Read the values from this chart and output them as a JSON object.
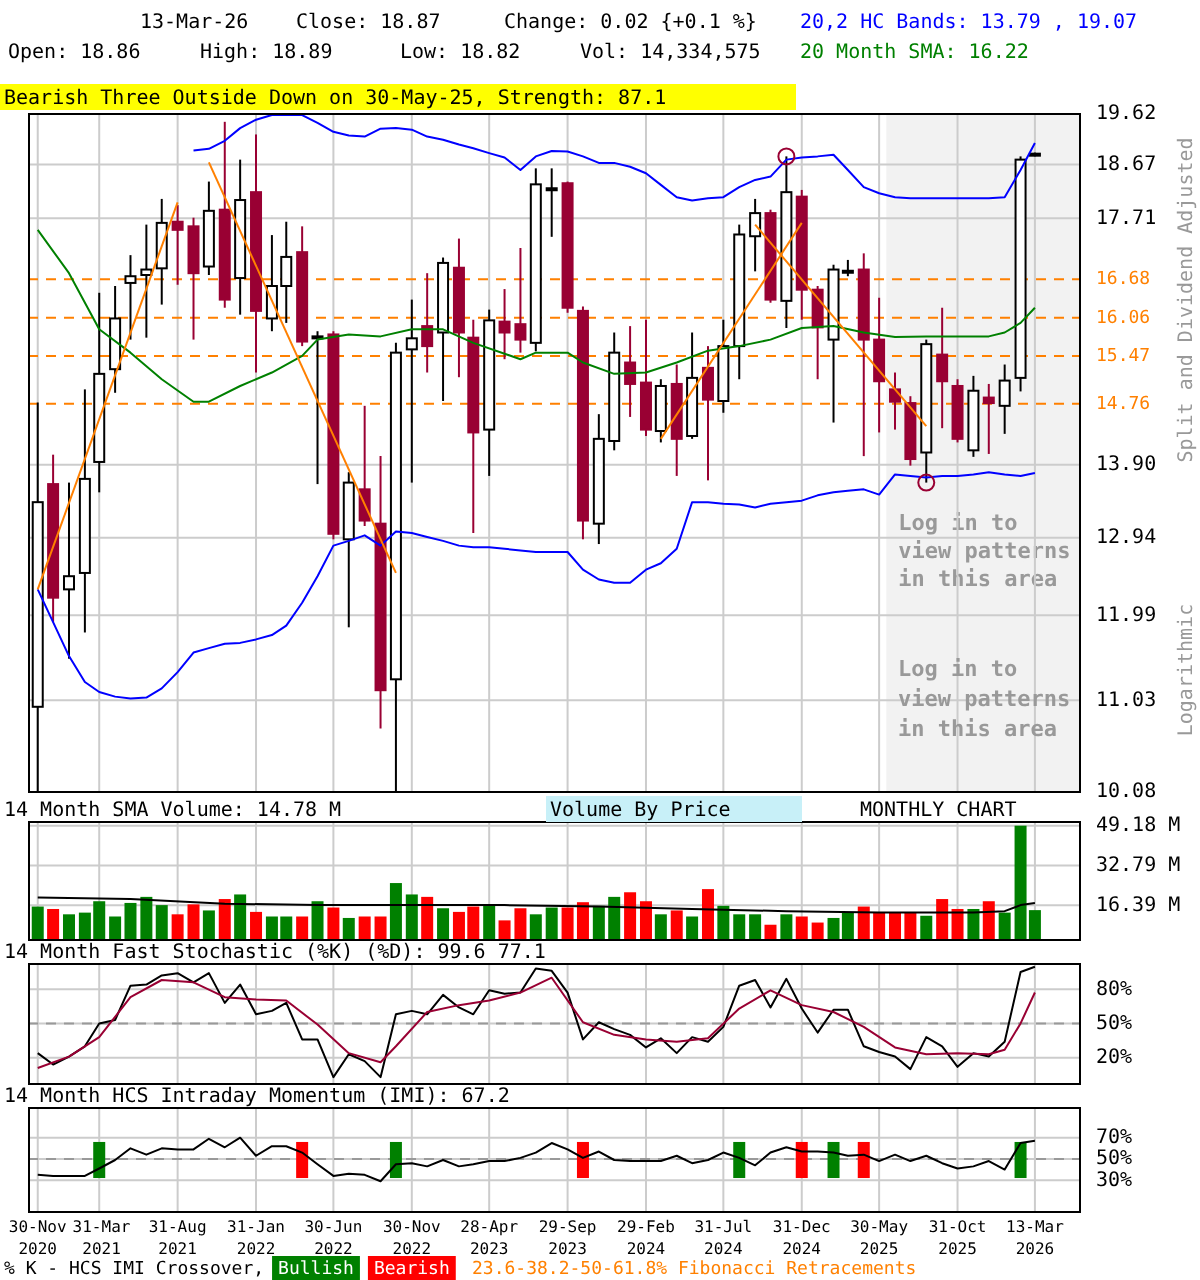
{
  "chart_data": [
    {
      "type": "candlestick",
      "colors": [
        "#ffffff",
        "#990033",
        "#ffffff",
        "#ffffff",
        "#ffffff",
        "#ffffff",
        "#ffffff",
        "#ffffff",
        "#ffffff",
        "#990033",
        "#990033",
        "#ffffff",
        "#990033",
        "#ffffff",
        "#990033",
        "#ffffff",
        "#ffffff",
        "#990033",
        "#ffffff",
        "#990033",
        "#ffffff",
        "#990033",
        "#990033",
        "#ffffff",
        "#ffffff",
        "#990033",
        "#ffffff",
        "#990033",
        "#990033",
        "#ffffff",
        "#990033",
        "#990033",
        "#ffffff",
        "#ffffff",
        "#990033",
        "#990033",
        "#ffffff",
        "#ffffff",
        "#990033",
        "#990033",
        "#ffffff",
        "#990033",
        "#ffffff",
        "#990033",
        "#ffffff",
        "#ffffff",
        "#ffffff",
        "#990033",
        "#ffffff",
        "#990033",
        "#990033",
        "#ffffff",
        "#ffffff",
        "#990033",
        "#990033",
        "#990033",
        "#990033",
        "#ffffff",
        "#990033",
        "#990033",
        "#ffffff",
        "#990033",
        "#ffffff",
        "#ffffff",
        "#ffffff"
      ],
      "x": [
        "2020-11",
        "2020-12",
        "2021-01",
        "2021-02",
        "2021-03",
        "2021-04",
        "2021-05",
        "2021-06",
        "2021-07",
        "2021-08",
        "2021-09",
        "2021-10",
        "2021-11",
        "2021-12",
        "2022-01",
        "2022-02",
        "2022-03",
        "2022-04",
        "2022-05",
        "2022-06",
        "2022-07",
        "2022-08",
        "2022-09",
        "2022-10",
        "2022-11",
        "2022-12",
        "2023-01",
        "2023-02",
        "2023-03",
        "2023-04",
        "2023-05",
        "2023-06",
        "2023-07",
        "2023-08",
        "2023-09",
        "2023-10",
        "2023-11",
        "2023-12",
        "2024-01",
        "2024-02",
        "2024-03",
        "2024-04",
        "2024-05",
        "2024-06",
        "2024-07",
        "2024-08",
        "2024-09",
        "2024-10",
        "2024-11",
        "2024-12",
        "2025-01",
        "2025-02",
        "2025-03",
        "2025-04",
        "2025-05",
        "2025-06",
        "2025-07",
        "2025-08",
        "2025-09",
        "2025-10",
        "2025-11",
        "2025-12",
        "2026-01",
        "2026-02",
        "2026-03"
      ],
      "ohlc": [
        [
          10.96,
          14.78,
          10.08,
          13.4
        ],
        [
          13.64,
          14.04,
          11.91,
          12.2
        ],
        [
          12.3,
          13.66,
          11.49,
          12.46
        ],
        [
          12.5,
          14.97,
          11.79,
          13.71
        ],
        [
          13.94,
          16.46,
          13.53,
          15.2
        ],
        [
          15.27,
          16.57,
          14.92,
          16.05
        ],
        [
          16.62,
          17.08,
          15.72,
          16.73
        ],
        [
          16.75,
          17.6,
          15.75,
          16.84
        ],
        [
          16.86,
          18.05,
          16.27,
          17.63
        ],
        [
          17.65,
          17.94,
          16.59,
          17.51
        ],
        [
          17.57,
          17.72,
          15.72,
          16.78
        ],
        [
          16.89,
          18.36,
          16.75,
          17.84
        ],
        [
          17.86,
          19.47,
          16.22,
          16.35
        ],
        [
          16.7,
          18.76,
          16.11,
          18.03
        ],
        [
          18.17,
          19.23,
          15.22,
          16.17
        ],
        [
          16.05,
          17.42,
          15.85,
          16.57
        ],
        [
          16.57,
          17.65,
          15.98,
          17.05
        ],
        [
          17.13,
          17.57,
          15.62,
          15.69
        ],
        [
          15.74,
          15.85,
          13.64,
          15.77
        ],
        [
          15.8,
          15.85,
          12.92,
          12.99
        ],
        [
          12.92,
          13.8,
          11.85,
          13.66
        ],
        [
          13.57,
          14.73,
          13.09,
          13.16
        ],
        [
          13.12,
          14.02,
          10.73,
          11.14
        ],
        [
          11.26,
          15.67,
          10.08,
          15.52
        ],
        [
          15.57,
          16.35,
          13.66,
          15.74
        ],
        [
          15.93,
          16.78,
          15.22,
          15.62
        ],
        [
          15.83,
          17.04,
          14.8,
          16.95
        ],
        [
          16.87,
          17.36,
          15.15,
          15.83
        ],
        [
          15.75,
          16.03,
          13.0,
          14.35
        ],
        [
          14.39,
          16.19,
          13.75,
          16.02
        ],
        [
          16.0,
          16.52,
          15.42,
          15.83
        ],
        [
          15.96,
          17.2,
          15.52,
          15.72
        ],
        [
          15.67,
          18.6,
          15.54,
          18.31
        ],
        [
          18.22,
          18.6,
          17.39,
          18.24
        ],
        [
          18.33,
          18.36,
          16.14,
          16.22
        ],
        [
          16.17,
          16.24,
          12.92,
          13.16
        ],
        [
          13.12,
          14.61,
          12.86,
          14.26
        ],
        [
          14.23,
          15.83,
          14.1,
          15.52
        ],
        [
          15.37,
          15.93,
          14.57,
          15.05
        ],
        [
          15.07,
          16.03,
          14.3,
          14.39
        ],
        [
          14.37,
          15.12,
          14.21,
          15.02
        ],
        [
          15.05,
          15.34,
          13.75,
          14.26
        ],
        [
          14.3,
          15.83,
          14.26,
          15.14
        ],
        [
          15.29,
          15.62,
          13.69,
          14.82
        ],
        [
          14.8,
          16.03,
          14.63,
          15.62
        ],
        [
          15.62,
          17.6,
          15.12,
          17.43
        ],
        [
          17.4,
          18.05,
          16.81,
          17.8
        ],
        [
          17.8,
          17.86,
          16.3,
          16.35
        ],
        [
          16.33,
          18.82,
          15.9,
          18.17
        ],
        [
          18.09,
          18.21,
          16.03,
          16.51
        ],
        [
          16.51,
          16.57,
          15.12,
          15.91
        ],
        [
          15.72,
          16.92,
          14.49,
          16.84
        ],
        [
          16.79,
          17.0,
          16.73,
          16.82
        ],
        [
          16.84,
          17.11,
          14.02,
          15.72
        ],
        [
          15.72,
          16.38,
          14.35,
          15.09
        ],
        [
          14.97,
          15.22,
          14.39,
          14.79
        ],
        [
          14.77,
          14.87,
          13.89,
          13.98
        ],
        [
          14.07,
          15.72,
          13.66,
          15.65
        ],
        [
          15.49,
          16.22,
          14.41,
          15.09
        ],
        [
          15.02,
          15.12,
          14.21,
          14.26
        ],
        [
          14.1,
          15.17,
          14.01,
          14.95
        ],
        [
          14.85,
          15.05,
          14.05,
          14.77
        ],
        [
          14.73,
          15.34,
          14.33,
          15.1
        ],
        [
          15.14,
          18.82,
          14.94,
          18.76
        ],
        [
          18.86,
          18.89,
          18.82,
          18.87
        ]
      ],
      "series": [
        {
          "type": "line",
          "name": "20,2 HC Bands: 13.79 , 19.07",
          "color": "#0000ff",
          "values": [
            null,
            null,
            null,
            null,
            null,
            null,
            null,
            null,
            null,
            null,
            18.93,
            18.96,
            19.11,
            19.35,
            19.51,
            19.6,
            19.6,
            19.6,
            19.45,
            19.28,
            19.21,
            19.19,
            19.34,
            19.35,
            19.32,
            19.19,
            19.13,
            19.04,
            18.97,
            18.88,
            18.8,
            18.57,
            18.82,
            18.92,
            18.91,
            18.82,
            18.7,
            18.7,
            18.63,
            18.51,
            18.3,
            18.08,
            18.02,
            18.06,
            18.08,
            18.26,
            18.39,
            18.45,
            18.76,
            18.8,
            18.82,
            18.85,
            18.57,
            18.26,
            18.15,
            18.08,
            18.06,
            18.06,
            18.06,
            18.06,
            18.06,
            18.06,
            18.08,
            18.57,
            19.07
          ]
        },
        {
          "type": "line",
          "color": "#0000ff",
          "values": [
            12.3,
            11.91,
            11.52,
            11.23,
            11.12,
            11.07,
            11.05,
            11.06,
            11.16,
            11.34,
            11.56,
            11.61,
            11.66,
            11.67,
            11.71,
            11.76,
            11.87,
            12.14,
            12.46,
            12.84,
            12.9,
            12.97,
            12.84,
            13.02,
            13.0,
            12.95,
            12.9,
            12.84,
            12.82,
            12.82,
            12.8,
            12.78,
            12.76,
            12.76,
            12.76,
            12.54,
            12.42,
            12.38,
            12.38,
            12.54,
            12.62,
            12.8,
            13.4,
            13.4,
            13.38,
            13.37,
            13.33,
            13.38,
            13.4,
            13.42,
            13.49,
            13.53,
            13.55,
            13.57,
            13.5,
            13.77,
            13.75,
            13.73,
            13.75,
            13.75,
            13.77,
            13.8,
            13.77,
            13.75,
            13.79
          ]
        },
        {
          "type": "line",
          "name": "20 Month SMA: 16.22",
          "color": "#008000",
          "x": [
            "2020-11",
            "2021-01",
            "2021-03",
            "2021-05",
            "2021-07",
            "2021-09",
            "2021-10",
            "2021-12",
            "2022-02",
            "2022-04",
            "2022-05",
            "2022-07",
            "2022-09",
            "2022-11",
            "2023-01",
            "2023-03",
            "2023-06",
            "2023-07",
            "2023-09",
            "2023-10",
            "2023-12",
            "2024-02",
            "2024-04",
            "2024-06",
            "2024-08",
            "2024-10",
            "2024-12",
            "2025-02",
            "2025-04",
            "2025-06",
            "2025-08",
            "2025-10",
            "2025-12",
            "2026-01",
            "2026-02",
            "2026-03"
          ],
          "values": [
            17.51,
            16.78,
            15.88,
            15.52,
            15.12,
            14.79,
            14.79,
            15.02,
            15.22,
            15.47,
            15.72,
            15.8,
            15.77,
            15.88,
            15.88,
            15.67,
            15.42,
            15.52,
            15.52,
            15.37,
            15.2,
            15.22,
            15.37,
            15.55,
            15.62,
            15.72,
            15.9,
            15.93,
            15.83,
            15.76,
            15.77,
            15.77,
            15.77,
            15.83,
            15.98,
            16.22
          ]
        },
        {
          "type": "line",
          "color": "#ff8000",
          "x": [
            "2020-11",
            "2021-08"
          ],
          "values": [
            12.3,
            17.99
          ]
        },
        {
          "type": "line",
          "color": "#ff8000",
          "x": [
            "2021-10",
            "2022-10"
          ],
          "values": [
            18.71,
            12.5
          ]
        },
        {
          "type": "line",
          "color": "#ff8000",
          "x": [
            "2024-03",
            "2024-12"
          ],
          "values": [
            14.26,
            17.63
          ]
        },
        {
          "type": "line",
          "color": "#ff8000",
          "x": [
            "2024-09",
            "2025-08"
          ],
          "values": [
            17.6,
            14.44
          ]
        },
        {
          "type": "scatter",
          "marker": "circle",
          "color": "#990033",
          "x": [
            "2024-11",
            "2025-08"
          ],
          "values": [
            18.82,
            13.66
          ]
        }
      ],
      "xlim": [
        "2020-10-13",
        "2026-05-28"
      ],
      "xticks": [
        "2020-11",
        "2021-03",
        "2021-08",
        "2022-01",
        "2022-06",
        "2022-11",
        "2023-04",
        "2023-09",
        "2024-02",
        "2024-07",
        "2024-12",
        "2025-05",
        "2025-10",
        "2026-03"
      ],
      "ylim": [
        10.08,
        19.62
      ],
      "log": true,
      "yticks": [
        19.62,
        18.67,
        17.71,
        {
          "value": 13.9,
          "label": "13.90"
        },
        12.94,
        11.99,
        11.03,
        10.08
      ],
      "grid": true,
      "tick_labels": "y",
      "legend": "top right",
      "ylabel": "Split and Dividend Adjusted",
      "ref_lines": [
        {
          "axis": "y",
          "value": 16.68,
          "label": "16.68",
          "color": "#ff8000",
          "line_style": "dashed"
        },
        {
          "axis": "y",
          "value": 16.06,
          "label": "16.06",
          "color": "#ff8000",
          "line_style": "dashed"
        },
        {
          "axis": "y",
          "value": 15.47,
          "label": "15.47",
          "color": "#ff8000",
          "line_style": "dashed"
        },
        {
          "axis": "y",
          "value": 14.76,
          "label": "14.76",
          "color": "#ff8000",
          "line_style": "dashed"
        }
      ],
      "bands": [
        {
          "axis": "x",
          "from": "2025-05-15",
          "to": "2026-05-28",
          "label": "Log in to view patterns in this area",
          "color": "#f2f2f2"
        }
      ],
      "annotations": [
        "13-Mar-26",
        "Close: 18.87",
        "Change: 0.02 {+0.1 %}",
        "Open: 18.86",
        "High: 18.89",
        "Low: 18.82",
        "Vol: 14,334,575",
        "Bearish Three Outside Down on 30-May-25, Strength: 87.1",
        "Log in to view patterns in this area",
        "Logarithmic"
      ]
    },
    {
      "type": "bar",
      "title": "14 Month SMA Volume: 14.78 M",
      "x": [
        "2020-11",
        "2020-12",
        "2021-01",
        "2021-02",
        "2021-03",
        "2021-04",
        "2021-05",
        "2021-06",
        "2021-07",
        "2021-08",
        "2021-09",
        "2021-10",
        "2021-11",
        "2021-12",
        "2022-01",
        "2022-02",
        "2022-03",
        "2022-04",
        "2022-05",
        "2022-06",
        "2022-07",
        "2022-08",
        "2022-09",
        "2022-10",
        "2022-11",
        "2022-12",
        "2023-01",
        "2023-02",
        "2023-03",
        "2023-04",
        "2023-05",
        "2023-06",
        "2023-07",
        "2023-08",
        "2023-09",
        "2023-10",
        "2023-11",
        "2023-12",
        "2024-01",
        "2024-02",
        "2024-03",
        "2024-04",
        "2024-05",
        "2024-06",
        "2024-07",
        "2024-08",
        "2024-09",
        "2024-10",
        "2024-11",
        "2024-12",
        "2025-01",
        "2025-02",
        "2025-03",
        "2025-04",
        "2025-05",
        "2025-06",
        "2025-07",
        "2025-08",
        "2025-09",
        "2025-10",
        "2025-11",
        "2025-12",
        "2026-01",
        "2026-02",
        "2026-03"
      ],
      "series": [
        {
          "type": "bar",
          "values": [
            15.8,
            14.8,
            12.6,
            13.3,
            18.0,
            11.7,
            17.3,
            19.8,
            16.4,
            12.6,
            16.7,
            14.2,
            18.9,
            20.8,
            13.6,
            11.7,
            11.7,
            11.7,
            18.0,
            15.4,
            11.1,
            11.7,
            11.7,
            25.5,
            20.8,
            19.8,
            15.1,
            13.6,
            15.8,
            16.4,
            10.1,
            15.1,
            12.6,
            15.4,
            15.4,
            17.6,
            16.1,
            19.8,
            21.7,
            18.0,
            12.6,
            14.2,
            11.7,
            23.0,
            16.1,
            12.6,
            12.6,
            8.3,
            12.6,
            11.7,
            9.2,
            11.1,
            13.3,
            15.8,
            13.3,
            13.3,
            13.3,
            12.0,
            18.9,
            14.8,
            14.8,
            18.0,
            13.3,
            49.18,
            14.33
          ],
          "colors": [
            "#008000",
            "#ff0000",
            "#008000",
            "#008000",
            "#008000",
            "#008000",
            "#008000",
            "#008000",
            "#008000",
            "#ff0000",
            "#ff0000",
            "#008000",
            "#ff0000",
            "#008000",
            "#ff0000",
            "#008000",
            "#008000",
            "#ff0000",
            "#008000",
            "#ff0000",
            "#008000",
            "#ff0000",
            "#ff0000",
            "#008000",
            "#008000",
            "#ff0000",
            "#008000",
            "#ff0000",
            "#ff0000",
            "#008000",
            "#ff0000",
            "#ff0000",
            "#008000",
            "#008000",
            "#ff0000",
            "#ff0000",
            "#008000",
            "#008000",
            "#ff0000",
            "#ff0000",
            "#008000",
            "#ff0000",
            "#008000",
            "#ff0000",
            "#008000",
            "#008000",
            "#008000",
            "#ff0000",
            "#008000",
            "#ff0000",
            "#ff0000",
            "#008000",
            "#008000",
            "#ff0000",
            "#ff0000",
            "#ff0000",
            "#ff0000",
            "#008000",
            "#ff0000",
            "#ff0000",
            "#008000",
            "#ff0000",
            "#008000",
            "#008000",
            "#008000"
          ]
        },
        {
          "type": "line",
          "color": "#000000",
          "x": [
            "2020-11",
            "2021-05",
            "2021-11",
            "2022-05",
            "2022-11",
            "2023-05",
            "2023-11",
            "2024-05",
            "2024-11",
            "2025-05",
            "2025-11",
            "2026-01",
            "2026-02",
            "2026-03"
          ],
          "values": [
            19.5,
            18.9,
            17.0,
            16.4,
            16.4,
            16.4,
            15.8,
            14.8,
            13.9,
            13.3,
            13.3,
            13.9,
            16.4,
            17.3
          ]
        }
      ],
      "xlim": [
        "2020-10-13",
        "2026-05-28"
      ],
      "xticks": [
        "2020-11",
        "2021-03",
        "2021-08",
        "2022-01",
        "2022-06",
        "2022-11",
        "2023-04",
        "2023-09",
        "2024-02",
        "2024-07",
        "2024-12",
        "2025-05",
        "2025-10",
        "2026-03"
      ],
      "ylim": [
        2,
        50.7
      ],
      "yticks": [
        {
          "value": 49.18,
          "label": "49.18 M"
        },
        {
          "value": 32.79,
          "label": "32.79 M"
        },
        {
          "value": 16.39,
          "label": "16.39 M"
        }
      ],
      "grid": true,
      "tick_labels": "y",
      "annotations": [
        "Volume By Price",
        "MONTHLY CHART"
      ]
    },
    {
      "type": "line",
      "title": "14 Month Fast Stochastic (%K) (%D): 99.6 77.1",
      "x": [
        "2020-11",
        "2020-12",
        "2021-01",
        "2021-02",
        "2021-03",
        "2021-04",
        "2021-05",
        "2021-06",
        "2021-07",
        "2021-08",
        "2021-09",
        "2021-10",
        "2021-11",
        "2021-12",
        "2022-01",
        "2022-02",
        "2022-03",
        "2022-04",
        "2022-05",
        "2022-06",
        "2022-07",
        "2022-08",
        "2022-09",
        "2022-10",
        "2022-11",
        "2022-12",
        "2023-01",
        "2023-02",
        "2023-03",
        "2023-04",
        "2023-05",
        "2023-06",
        "2023-07",
        "2023-08",
        "2023-09",
        "2023-10",
        "2023-11",
        "2023-12",
        "2024-01",
        "2024-02",
        "2024-03",
        "2024-04",
        "2024-05",
        "2024-06",
        "2024-07",
        "2024-08",
        "2024-09",
        "2024-10",
        "2024-11",
        "2024-12",
        "2025-01",
        "2025-02",
        "2025-03",
        "2025-04",
        "2025-05",
        "2025-06",
        "2025-07",
        "2025-08",
        "2025-09",
        "2025-10",
        "2025-11",
        "2025-12",
        "2026-01",
        "2026-02",
        "2026-03"
      ],
      "series": [
        {
          "color": "#000000",
          "values": [
            24,
            14,
            21,
            30,
            50,
            53,
            83,
            84,
            92,
            94,
            86,
            94,
            68,
            84,
            58,
            61,
            68,
            36,
            36,
            3,
            23,
            17,
            3,
            58,
            61,
            58,
            75,
            64,
            58,
            79,
            76,
            77,
            98,
            96,
            77,
            36,
            51,
            45,
            40,
            29,
            37,
            24,
            38,
            34,
            47,
            83,
            88,
            64,
            89,
            63,
            42,
            62,
            62,
            30,
            25,
            21,
            10,
            38,
            30,
            12,
            24,
            21,
            34,
            95,
            99.6
          ]
        },
        {
          "color": "#990033",
          "x": [
            "2020-11",
            "2021-01",
            "2021-03",
            "2021-05",
            "2021-07",
            "2021-09",
            "2021-11",
            "2022-01",
            "2022-03",
            "2022-05",
            "2022-07",
            "2022-09",
            "2022-10",
            "2022-12",
            "2023-02",
            "2023-04",
            "2023-06",
            "2023-08",
            "2023-10",
            "2023-12",
            "2024-02",
            "2024-04",
            "2024-06",
            "2024-08",
            "2024-10",
            "2024-12",
            "2025-02",
            "2025-04",
            "2025-06",
            "2025-08",
            "2025-10",
            "2025-12",
            "2026-01",
            "2026-02",
            "2026-03"
          ],
          "values": [
            11,
            21,
            38,
            73,
            88,
            86,
            73,
            71,
            70,
            49,
            24,
            16,
            30,
            60,
            66,
            70,
            77,
            90,
            51,
            40,
            36,
            34,
            37,
            63,
            79,
            66,
            60,
            47,
            29,
            23,
            24,
            23,
            27,
            50,
            77.1
          ]
        }
      ],
      "xlim": [
        "2020-10-13",
        "2026-05-28"
      ],
      "xticks": [
        "2020-11",
        "2021-03",
        "2021-08",
        "2022-01",
        "2022-06",
        "2022-11",
        "2023-04",
        "2023-09",
        "2024-02",
        "2024-07",
        "2024-12",
        "2025-05",
        "2025-10",
        "2026-03"
      ],
      "ylim": [
        -3,
        102
      ],
      "yticks": [
        {
          "value": 80,
          "label": "80%"
        },
        {
          "value": 50,
          "label": "50%"
        },
        {
          "value": 20,
          "label": "20%"
        }
      ],
      "grid": true,
      "tick_labels": "y",
      "ref_lines": [
        {
          "axis": "y",
          "value": 50,
          "color": "#999999",
          "line_style": "dashed"
        }
      ]
    },
    {
      "type": "line",
      "title": "14 Month HCS Intraday Momentum (IMI): 67.2",
      "x": [
        "2020-11",
        "2020-12",
        "2021-01",
        "2021-02",
        "2021-03",
        "2021-04",
        "2021-05",
        "2021-06",
        "2021-07",
        "2021-08",
        "2021-09",
        "2021-10",
        "2021-11",
        "2021-12",
        "2022-01",
        "2022-02",
        "2022-03",
        "2022-04",
        "2022-05",
        "2022-06",
        "2022-07",
        "2022-08",
        "2022-09",
        "2022-10",
        "2022-11",
        "2022-12",
        "2023-01",
        "2023-02",
        "2023-03",
        "2023-04",
        "2023-05",
        "2023-06",
        "2023-07",
        "2023-08",
        "2023-09",
        "2023-10",
        "2023-11",
        "2023-12",
        "2024-01",
        "2024-02",
        "2024-03",
        "2024-04",
        "2024-05",
        "2024-06",
        "2024-07",
        "2024-08",
        "2024-09",
        "2024-10",
        "2024-11",
        "2024-12",
        "2025-01",
        "2025-02",
        "2025-03",
        "2025-04",
        "2025-05",
        "2025-06",
        "2025-07",
        "2025-08",
        "2025-09",
        "2025-10",
        "2025-11",
        "2025-12",
        "2026-01",
        "2026-02",
        "2026-03"
      ],
      "series": [
        {
          "type": "bar",
          "name": "Bullish",
          "color": "#008000",
          "x": [
            "2021-03",
            "2022-10",
            "2024-08",
            "2025-02",
            "2026-02"
          ],
          "base": [
            32,
            32,
            32,
            32,
            32
          ],
          "values": [
            34,
            34,
            34,
            34,
            34
          ]
        },
        {
          "type": "bar",
          "name": "Bearish",
          "color": "#ff0000",
          "x": [
            "2022-04",
            "2023-10",
            "2024-12",
            "2025-04"
          ],
          "base": [
            32,
            32,
            32,
            32
          ],
          "values": [
            34,
            34,
            34,
            34
          ]
        },
        {
          "type": "line",
          "color": "#000000",
          "values": [
            35,
            34,
            34,
            34,
            41,
            49,
            60,
            54,
            60,
            59,
            59,
            69,
            61,
            70,
            53,
            62,
            62,
            56,
            45,
            34,
            36,
            35,
            29,
            45,
            46,
            43,
            49,
            43,
            45,
            48,
            48,
            51,
            56,
            65,
            59,
            51,
            57,
            49,
            48,
            48,
            48,
            53,
            46,
            49,
            56,
            51,
            44,
            56,
            61,
            57,
            57,
            56,
            53,
            54,
            48,
            54,
            48,
            53,
            46,
            41,
            43,
            48,
            40,
            65,
            67.2
          ]
        }
      ],
      "xlim": [
        "2020-10-13",
        "2026-05-28"
      ],
      "xticks": [
        {
          "value": "2020-11",
          "label": "30-Nov 2020"
        },
        {
          "value": "2021-03",
          "label": "31-Mar 2021"
        },
        {
          "value": "2021-08",
          "label": "31-Aug 2021"
        },
        {
          "value": "2022-01",
          "label": "31-Jan 2022"
        },
        {
          "value": "2022-06",
          "label": "30-Jun 2022"
        },
        {
          "value": "2022-11",
          "label": "30-Nov 2022"
        },
        {
          "value": "2023-04",
          "label": "28-Apr 2023"
        },
        {
          "value": "2023-09",
          "label": "29-Sep 2023"
        },
        {
          "value": "2024-02",
          "label": "29-Feb 2024"
        },
        {
          "value": "2024-07",
          "label": "31-Jul 2024"
        },
        {
          "value": "2024-12",
          "label": "31-Dec 2024"
        },
        {
          "value": "2025-05",
          "label": "30-May 2025"
        },
        {
          "value": "2025-10",
          "label": "31-Oct 2025"
        },
        {
          "value": "2026-03",
          "label": "13-Mar 2026"
        }
      ],
      "ylim": [
        0,
        98
      ],
      "yticks": [
        {
          "value": 70,
          "label": "70%"
        },
        {
          "value": 50,
          "label": "50%"
        },
        {
          "value": 30,
          "label": "30%"
        }
      ],
      "grid": true,
      "legend": "bottom",
      "legend_title": "% K - HCS IMI Crossover,",
      "ref_lines": [
        {
          "axis": "y",
          "value": 50,
          "color": "#999999",
          "line_style": "dashed"
        }
      ],
      "annotations": [
        "23.6-38.2-50-61.8% Fibonacci Retracements"
      ]
    }
  ]
}
